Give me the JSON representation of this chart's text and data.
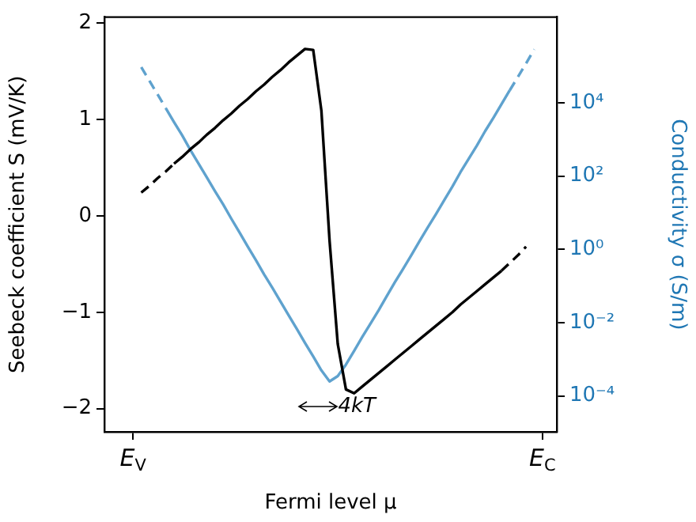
{
  "chart_data": {
    "type": "line",
    "xlabel": "Fermi level μ",
    "ylabel": "Seebeck coefficient S (mV/K)",
    "y2label": "Conductivity σ (S/m)",
    "categories": [
      "E$_{V}$",
      null,
      null,
      null,
      null,
      null,
      null,
      null,
      null,
      null,
      null,
      null,
      null,
      null,
      null,
      null,
      null,
      null,
      null,
      null,
      null,
      null,
      null,
      null,
      null,
      null,
      null,
      null,
      null,
      null,
      null,
      null,
      null,
      null,
      null,
      null,
      null,
      null,
      null,
      null,
      null,
      null,
      null,
      null,
      null,
      null,
      null,
      null,
      null,
      null,
      "E$_{C}$"
    ],
    "ylim": [
      -2.24,
      2.06
    ],
    "yticks": [
      -2,
      -1,
      0,
      1,
      2
    ],
    "y2lim": [
      1.05e-05,
      2200000.0
    ],
    "y2ticks": [
      {
        "value": 0.0001,
        "label": "10⁻⁴"
      },
      {
        "value": 0.01,
        "label": "10⁻²"
      },
      {
        "value": 1,
        "label": "10⁰"
      },
      {
        "value": 100,
        "label": "10²"
      },
      {
        "value": 10000,
        "label": "10⁴"
      }
    ],
    "log": "y2",
    "grid": false,
    "legend": false,
    "series": [
      {
        "color": "#000000",
        "line_style": "dashed",
        "values": [
          null,
          0.24,
          0.31,
          0.39,
          0.46,
          0.54,
          null,
          null,
          null,
          null,
          null,
          null,
          null,
          null,
          null,
          null,
          null,
          null,
          null,
          null,
          null,
          null,
          null,
          null,
          null,
          null,
          null,
          null,
          null,
          null,
          null,
          null,
          null,
          null,
          null,
          null,
          null,
          null,
          null,
          null,
          null,
          null,
          null,
          null,
          null,
          null,
          null,
          null,
          null,
          null,
          null
        ]
      },
      {
        "color": "#000000",
        "line_style": "solid",
        "values": [
          null,
          null,
          null,
          null,
          null,
          0.54,
          0.61,
          0.69,
          0.76,
          0.84,
          0.91,
          0.99,
          1.06,
          1.14,
          1.21,
          1.29,
          1.36,
          1.44,
          1.51,
          1.59,
          1.66,
          1.73,
          1.72,
          1.09,
          -0.26,
          -1.33,
          -1.8,
          -1.84,
          -1.77,
          -1.7,
          -1.63,
          -1.56,
          -1.49,
          -1.42,
          -1.35,
          -1.28,
          -1.21,
          -1.14,
          -1.07,
          -1.0,
          -0.92,
          -0.85,
          -0.78,
          -0.71,
          -0.64,
          -0.57,
          null,
          null,
          null,
          null,
          null
        ]
      },
      {
        "color": "#000000",
        "line_style": "dashed",
        "values": [
          null,
          null,
          null,
          null,
          null,
          null,
          null,
          null,
          null,
          null,
          null,
          null,
          null,
          null,
          null,
          null,
          null,
          null,
          null,
          null,
          null,
          null,
          null,
          null,
          null,
          null,
          null,
          null,
          null,
          null,
          null,
          null,
          null,
          null,
          null,
          null,
          null,
          null,
          null,
          null,
          null,
          null,
          null,
          null,
          null,
          -0.57,
          -0.49,
          -0.41,
          -0.32,
          null,
          null
        ]
      },
      {
        "color": "#5fa2ce",
        "axis": "y2",
        "line_style": "dashed",
        "values": [
          null,
          95000,
          40000,
          17000,
          7100,
          null,
          null,
          null,
          null,
          null,
          null,
          null,
          null,
          null,
          null,
          null,
          null,
          null,
          null,
          null,
          null,
          null,
          null,
          null,
          null,
          null,
          null,
          null,
          null,
          null,
          null,
          null,
          null,
          null,
          null,
          null,
          null,
          null,
          null,
          null,
          null,
          null,
          null,
          null,
          null,
          null,
          null,
          null,
          null,
          null,
          null
        ]
      },
      {
        "color": "#5fa2ce",
        "axis": "y2",
        "line_style": "solid",
        "values": [
          null,
          null,
          null,
          null,
          7100,
          3000,
          1300,
          520,
          220,
          93,
          39,
          17,
          6.9,
          2.9,
          1.2,
          0.51,
          0.21,
          0.091,
          0.038,
          0.016,
          0.0068,
          0.0028,
          0.0012,
          0.0005,
          0.00025,
          0.00035,
          0.00072,
          0.0017,
          0.0041,
          0.0095,
          0.022,
          0.054,
          0.13,
          0.3,
          0.71,
          1.7,
          4.0,
          9.3,
          22,
          52,
          130,
          300,
          690,
          1700,
          3900,
          9300,
          22000,
          null,
          null,
          null,
          null
        ]
      },
      {
        "color": "#5fa2ce",
        "axis": "y2",
        "line_style": "dashed",
        "values": [
          null,
          null,
          null,
          null,
          null,
          null,
          null,
          null,
          null,
          null,
          null,
          null,
          null,
          null,
          null,
          null,
          null,
          null,
          null,
          null,
          null,
          null,
          null,
          null,
          null,
          null,
          null,
          null,
          null,
          null,
          null,
          null,
          null,
          null,
          null,
          null,
          null,
          null,
          null,
          null,
          null,
          null,
          null,
          null,
          null,
          null,
          22000,
          51000,
          120000,
          290000,
          null
        ]
      }
    ],
    "annotations": [
      "4kT"
    ]
  }
}
